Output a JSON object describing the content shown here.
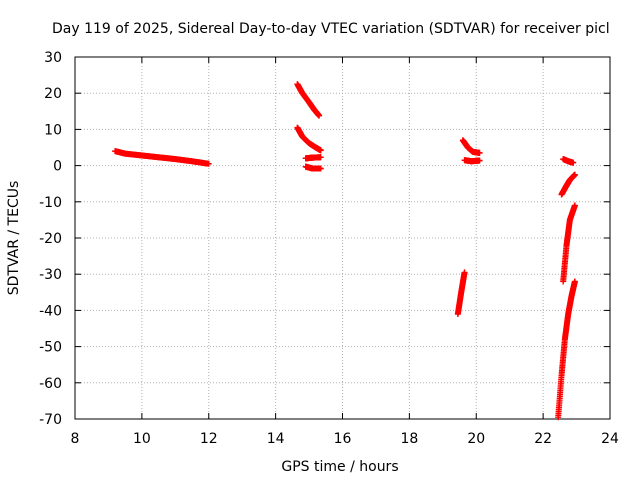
{
  "chart_data": {
    "type": "scatter",
    "title": "Day 119 of 2025, Sidereal Day-to-day VTEC variation (SDTVAR) for receiver picl",
    "xlabel": "GPS time / hours",
    "ylabel": "SDTVAR / TECUs",
    "xlim": [
      8,
      24
    ],
    "ylim": [
      -70,
      30
    ],
    "xticks": [
      "8",
      "10",
      "12",
      "14",
      "16",
      "18",
      "20",
      "22",
      "24"
    ],
    "yticks": [
      "30",
      "20",
      "10",
      "0",
      "-10",
      "-20",
      "-30",
      "-40",
      "-50",
      "-60",
      "-70"
    ],
    "grid": true,
    "marker": "+",
    "color": "#ff0000",
    "segments": [
      {
        "x": [
          9.2,
          9.5,
          10.0,
          10.5,
          11.0,
          11.5,
          12.0
        ],
        "y": [
          4.0,
          3.3,
          2.8,
          2.3,
          1.8,
          1.2,
          0.5
        ]
      },
      {
        "x": [
          14.65,
          14.8,
          15.0,
          15.15,
          15.3
        ],
        "y": [
          22.5,
          20.0,
          17.5,
          15.5,
          13.8
        ]
      },
      {
        "x": [
          14.65,
          14.8,
          15.0,
          15.2,
          15.35
        ],
        "y": [
          10.5,
          8.0,
          6.2,
          5.0,
          4.2
        ]
      },
      {
        "x": [
          14.9,
          15.1,
          15.35
        ],
        "y": [
          2.0,
          2.2,
          2.3
        ]
      },
      {
        "x": [
          14.9,
          15.1,
          15.35
        ],
        "y": [
          -0.3,
          -0.8,
          -0.8
        ]
      },
      {
        "x": [
          19.45,
          19.55,
          19.65
        ],
        "y": [
          -41.0,
          -35.0,
          -29.5
        ]
      },
      {
        "x": [
          19.6,
          19.75,
          19.9,
          20.1
        ],
        "y": [
          7.0,
          5.0,
          3.8,
          3.5
        ]
      },
      {
        "x": [
          19.65,
          19.85,
          20.1
        ],
        "y": [
          1.5,
          1.2,
          1.4
        ]
      },
      {
        "x": [
          22.6,
          22.75,
          22.9
        ],
        "y": [
          1.8,
          1.2,
          0.8
        ]
      },
      {
        "x": [
          22.55,
          22.7,
          22.8,
          22.95
        ],
        "y": [
          -8.0,
          -5.5,
          -4.0,
          -2.5
        ]
      },
      {
        "x": [
          22.6,
          22.7,
          22.8,
          22.95
        ],
        "y": [
          -32.0,
          -22.0,
          -15.0,
          -11.0
        ]
      },
      {
        "x": [
          22.45,
          22.55,
          22.65,
          22.75,
          22.85,
          22.95
        ],
        "y": [
          -69.5,
          -58.0,
          -48.0,
          -41.0,
          -36.0,
          -32.0
        ]
      }
    ]
  }
}
